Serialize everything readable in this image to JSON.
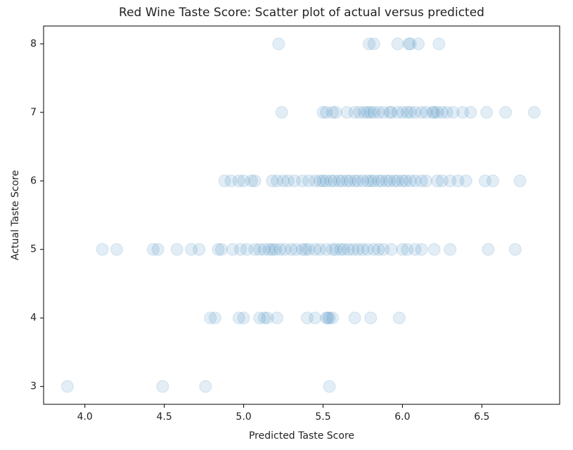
{
  "chart_data": {
    "type": "scatter",
    "title": "Red Wine Taste Score: Scatter plot of actual versus predicted",
    "x_label": "Predicted Taste Score",
    "y_label": "Actual Taste Score",
    "color": "#1f77b4",
    "x": [
      3.89,
      4.49,
      4.76,
      5.54,
      4.79,
      4.82,
      4.97,
      5.0,
      5.1,
      5.13,
      5.15,
      5.21,
      5.4,
      5.45,
      5.52,
      5.53,
      5.54,
      5.56,
      5.7,
      5.8,
      5.98,
      5.22,
      5.79,
      5.82,
      5.97,
      6.04,
      6.05,
      6.1,
      6.23,
      5.24,
      5.5,
      5.52,
      5.56,
      5.58,
      5.65,
      5.7,
      5.73,
      5.76,
      5.78,
      5.8,
      5.82,
      5.85,
      5.88,
      5.92,
      5.93,
      5.97,
      6.0,
      6.03,
      6.05,
      6.08,
      6.12,
      6.15,
      6.19,
      6.2,
      6.22,
      6.25,
      6.28,
      6.32,
      6.38,
      6.43,
      6.53,
      6.65,
      6.83,
      4.88,
      4.92,
      4.97,
      5.0,
      5.05,
      5.07,
      5.18,
      5.21,
      5.25,
      5.28,
      5.32,
      5.37,
      5.41,
      5.45,
      5.48,
      5.5,
      5.52,
      5.55,
      5.57,
      5.6,
      5.62,
      5.65,
      5.67,
      5.7,
      5.72,
      5.75,
      5.78,
      5.8,
      5.82,
      5.85,
      5.87,
      5.9,
      5.92,
      5.95,
      5.97,
      6.0,
      6.02,
      6.05,
      6.08,
      6.12,
      6.15,
      6.22,
      6.25,
      6.3,
      6.35,
      6.4,
      6.52,
      6.57,
      6.74,
      4.11,
      4.2,
      4.43,
      4.46,
      4.58,
      4.67,
      4.72,
      4.84,
      4.86,
      4.93,
      4.98,
      5.02,
      5.07,
      5.1,
      5.13,
      5.16,
      5.18,
      5.2,
      5.23,
      5.26,
      5.3,
      5.33,
      5.37,
      5.39,
      5.41,
      5.45,
      5.48,
      5.52,
      5.56,
      5.58,
      5.61,
      5.63,
      5.66,
      5.69,
      5.72,
      5.75,
      5.78,
      5.82,
      5.85,
      5.88,
      5.93,
      6.0,
      6.03,
      6.08,
      6.12,
      6.2,
      6.3,
      6.54,
      6.71
    ],
    "values": [
      3,
      3,
      3,
      3,
      4,
      4,
      4,
      4,
      4,
      4,
      4,
      4,
      4,
      4,
      4,
      4,
      4,
      4,
      4,
      4,
      4,
      8,
      8,
      8,
      8,
      8,
      8,
      8,
      8,
      7,
      7,
      7,
      7,
      7,
      7,
      7,
      7,
      7,
      7,
      7,
      7,
      7,
      7,
      7,
      7,
      7,
      7,
      7,
      7,
      7,
      7,
      7,
      7,
      7,
      7,
      7,
      7,
      7,
      7,
      7,
      7,
      7,
      7,
      6,
      6,
      6,
      6,
      6,
      6,
      6,
      6,
      6,
      6,
      6,
      6,
      6,
      6,
      6,
      6,
      6,
      6,
      6,
      6,
      6,
      6,
      6,
      6,
      6,
      6,
      6,
      6,
      6,
      6,
      6,
      6,
      6,
      6,
      6,
      6,
      6,
      6,
      6,
      6,
      6,
      6,
      6,
      6,
      6,
      6,
      6,
      6,
      6,
      5,
      5,
      5,
      5,
      5,
      5,
      5,
      5,
      5,
      5,
      5,
      5,
      5,
      5,
      5,
      5,
      5,
      5,
      5,
      5,
      5,
      5,
      5,
      5,
      5,
      5,
      5,
      5,
      5,
      5,
      5,
      5,
      5,
      5,
      5,
      5,
      5,
      5,
      5,
      5,
      5,
      5,
      5,
      5,
      5,
      5,
      5,
      5,
      5
    ],
    "xlim": [
      3.74,
      6.99
    ],
    "ylim": [
      2.74,
      8.26
    ],
    "xticks": [
      {
        "value": 4,
        "label": "4.0"
      },
      4.5,
      {
        "value": 5,
        "label": "5.0"
      },
      5.5,
      {
        "value": 6,
        "label": "6.0"
      },
      6.5
    ],
    "yticks": [
      3,
      4,
      5,
      6,
      7,
      8
    ],
    "grid": false
  }
}
